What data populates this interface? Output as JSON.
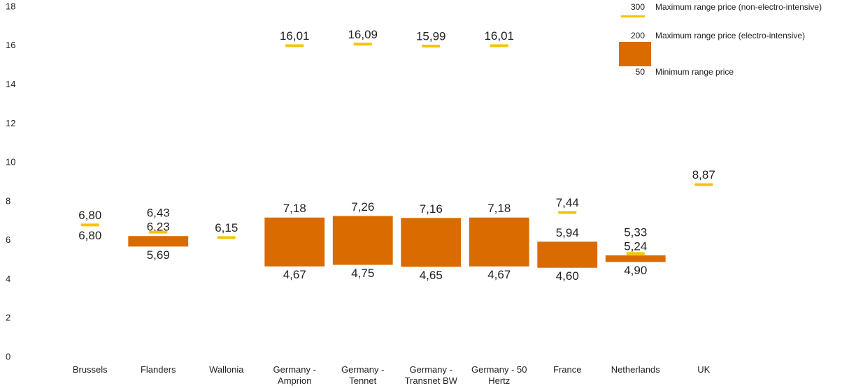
{
  "chart_data": {
    "type": "range",
    "categories": [
      "Brussels",
      "Flanders",
      "Wallonia",
      "Germany - Amprion",
      "Germany - Tennet",
      "Germany - Transnet BW",
      "Germany - 50 Hertz",
      "France",
      "Netherlands",
      "UK"
    ],
    "series": [
      {
        "name": "Maximum range price (non-electro-intensive)",
        "legend_sample": "300",
        "color": "#f5c400",
        "style": "dash",
        "values": [
          6.8,
          6.43,
          6.15,
          16.01,
          16.09,
          15.99,
          16.01,
          7.44,
          5.33,
          8.87
        ],
        "value_labels": [
          "6,80",
          "6,43",
          "6,15",
          "16,01",
          "16,09",
          "15,99",
          "16,01",
          "7,44",
          "5,33",
          "8,87"
        ]
      },
      {
        "name": "Maximum range price (electro-intensive)",
        "legend_sample": "200",
        "color": "#d96b00",
        "style": "bar-top",
        "values": [
          null,
          6.23,
          null,
          7.18,
          7.26,
          7.16,
          7.18,
          5.94,
          5.24,
          null
        ],
        "value_labels": [
          null,
          "6,23",
          null,
          "7,18",
          "7,26",
          "7,16",
          "7,18",
          "5,94",
          "5,24",
          null
        ]
      },
      {
        "name": "Minimum range price",
        "legend_sample": "50",
        "color": "#d96b00",
        "style": "bar-bottom",
        "values": [
          6.8,
          5.69,
          null,
          4.67,
          4.75,
          4.65,
          4.67,
          4.6,
          4.9,
          null
        ],
        "value_labels": [
          "6,80",
          "5,69",
          null,
          "4,67",
          "4,75",
          "4,65",
          "4,67",
          "4,60",
          "4,90",
          null
        ]
      }
    ],
    "ylim": [
      0,
      18
    ],
    "yticks": [
      0,
      2,
      4,
      6,
      8,
      10,
      12,
      14,
      16,
      18
    ],
    "grid": false
  }
}
